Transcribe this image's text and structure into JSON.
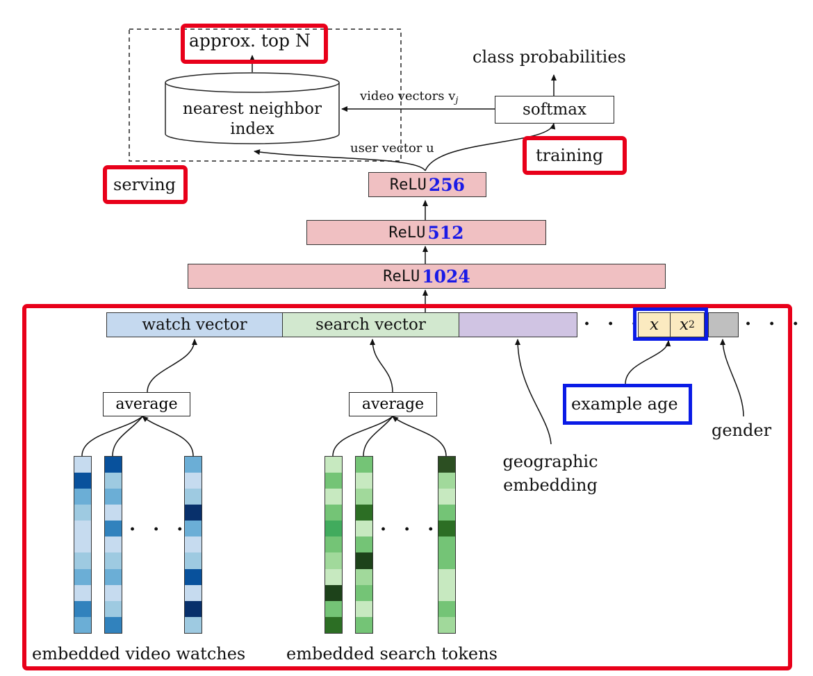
{
  "top": {
    "approx_label": "approx. top N",
    "index_label": [
      "nearest neighbor",
      "index"
    ],
    "class_probabilities": "class probabilities",
    "softmax": "softmax",
    "video_vectors": "video vectors v",
    "video_vectors_subscript": "j",
    "user_vector": "user vector u",
    "serving": "serving",
    "training": "training"
  },
  "layers": [
    {
      "name": "ReLU",
      "size": "256"
    },
    {
      "name": "ReLU",
      "size": "512"
    },
    {
      "name": "ReLU",
      "size": "1024"
    }
  ],
  "input_vector": {
    "watch": "watch vector",
    "search": "search vector",
    "age_x": "x",
    "age_x2_base": "x",
    "age_x2_exp": "2",
    "dots": "· · ·"
  },
  "features": {
    "average_1": "average",
    "average_2": "average",
    "example_age": "example age",
    "gender": "gender",
    "geo": [
      "geographic",
      "embedding"
    ],
    "watches_label": "embedded video watches",
    "tokens_label": "embedded search tokens"
  },
  "colors": {
    "relu_fill": "#f0c0c2",
    "watch_fill": "#c5d9ef",
    "search_fill": "#d2e8cf",
    "geo_fill": "#d0c4e3",
    "age_fill": "#fbeac0",
    "gender_fill": "#bfbfbf",
    "highlight_red": "#e8001a",
    "highlight_blue": "#0a1be6",
    "layer_size_blue": "#1a1ae6"
  },
  "embedding_columns": {
    "blue": [
      [
        "#c6dbef",
        "#08519c",
        "#6baed6",
        "#9ecae1",
        "#c6dbef",
        "#c6dbef",
        "#9ecae1",
        "#6baed6",
        "#c6dbef",
        "#3182bd",
        "#6baed6"
      ],
      [
        "#08519c",
        "#9ecae1",
        "#6baed6",
        "#c6dbef",
        "#3182bd",
        "#c6dbef",
        "#9ecae1",
        "#6baed6",
        "#c6dbef",
        "#9ecae1",
        "#3182bd"
      ],
      [
        "#6baed6",
        "#c6dbef",
        "#9ecae1",
        "#08306b",
        "#6baed6",
        "#c6dbef",
        "#9ecae1",
        "#08519c",
        "#c6dbef",
        "#08306b",
        "#9ecae1"
      ]
    ],
    "green": [
      [
        "#c7e9c0",
        "#74c476",
        "#c7e9c0",
        "#74c476",
        "#41ab5d",
        "#74c476",
        "#a1d99b",
        "#c7e9c0",
        "#1d421a",
        "#74c476",
        "#2c6e24"
      ],
      [
        "#74c476",
        "#c7e9c0",
        "#a1d99b",
        "#2c6e24",
        "#c7e9c0",
        "#74c476",
        "#1d421a",
        "#a1d99b",
        "#74c476",
        "#c7e9c0",
        "#74c476"
      ],
      [
        "#2c4f22",
        "#a1d99b",
        "#c7e9c0",
        "#74c476",
        "#2c6e24",
        "#74c476",
        "#74c476",
        "#c7e9c0",
        "#c7e9c0",
        "#74c476",
        "#a1d99b"
      ]
    ]
  }
}
